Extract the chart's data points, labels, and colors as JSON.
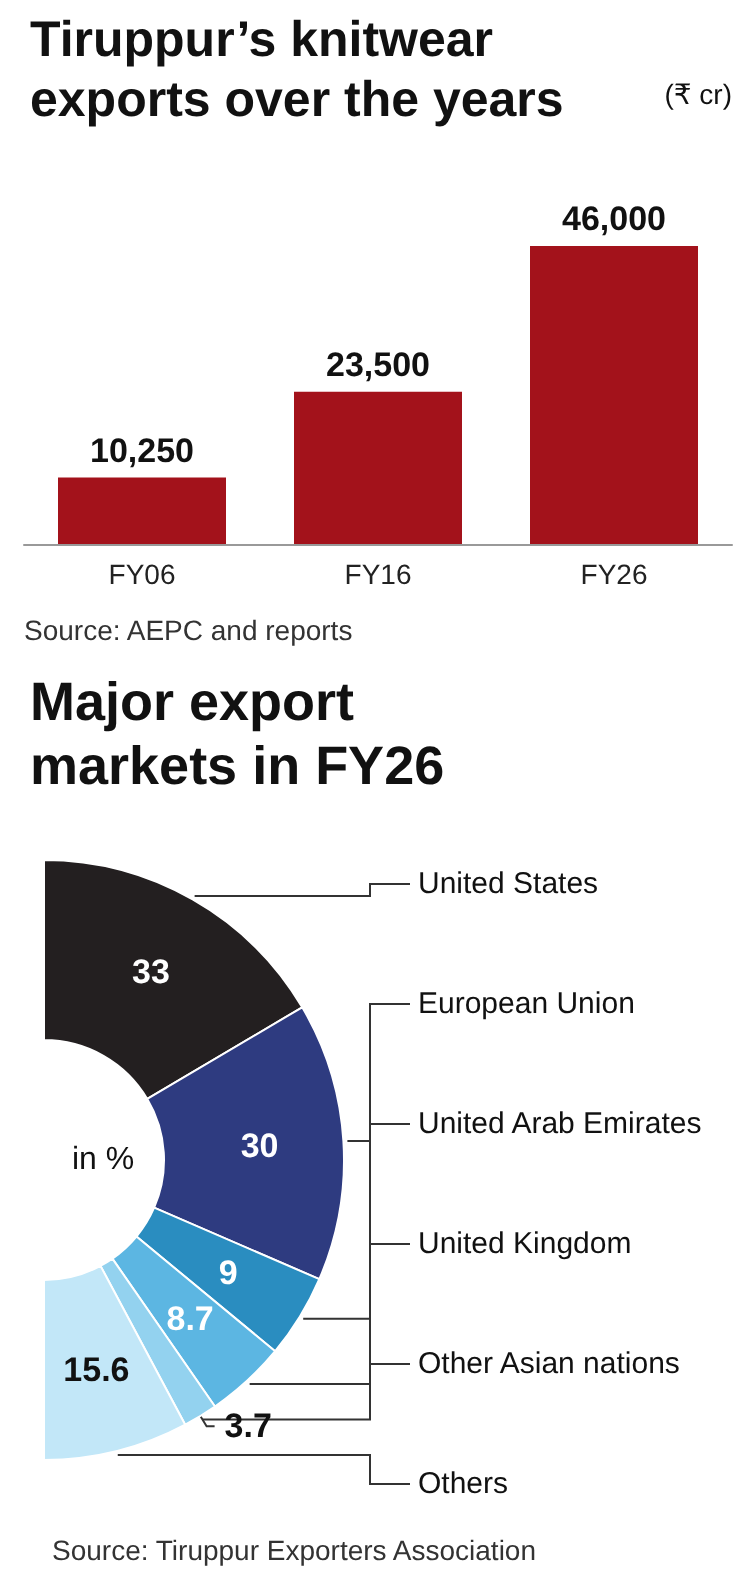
{
  "chart_data": [
    {
      "type": "bar",
      "title": "Tiruppur’s knitwear exports over the years",
      "subtitle": "(₹ cr)",
      "categories": [
        "FY06",
        "FY16",
        "FY26"
      ],
      "values": [
        10250,
        23500,
        46000
      ],
      "value_labels": [
        "10,250",
        "23,500",
        "46,000"
      ],
      "color": "#a3121b",
      "annotations": [
        "Source: AEPC and reports"
      ]
    },
    {
      "type": "donut",
      "title": "Major export markets in FY26",
      "categories": [
        "United States",
        "European Union",
        "United Arab Emirates",
        "United Kingdom",
        "Other Asian nations",
        "Others"
      ],
      "values": [
        33,
        30,
        9,
        8.7,
        3.7,
        15.6
      ],
      "colors": [
        "#231f20",
        "#2e3b80",
        "#2a8dc0",
        "#5cb6e2",
        "#93d2ef",
        "#c2e7f8"
      ],
      "data_labels": true,
      "annotations": [
        "in %",
        "Source: Tiruppur Exporters Association"
      ]
    }
  ]
}
